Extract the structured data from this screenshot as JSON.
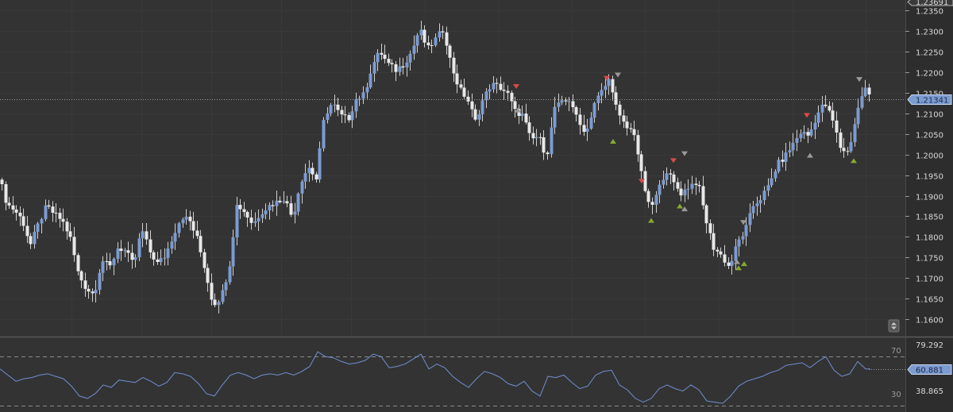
{
  "chart_data": [
    {
      "type": "candlestick",
      "title": "",
      "xlabel": "",
      "ylabel": "",
      "ylim": [
        1.156,
        1.2375
      ],
      "y_ticks": [
        "1.2350",
        "1.2300",
        "1.2250",
        "1.2200",
        "1.2150",
        "1.2100",
        "1.2050",
        "1.2000",
        "1.1950",
        "1.1900",
        "1.1850",
        "1.1800",
        "1.1750",
        "1.1700",
        "1.1650",
        "1.1600"
      ],
      "top_price_label": "1.23691",
      "current_price": 1.21341,
      "current_price_label": "1.21341",
      "grid": true,
      "bull_color": "#7b9bd1",
      "bear_color": "#e8e8e8",
      "wick_color": "#d0d0d0",
      "signal_up_color": "#86a832",
      "signal_down_color": "#d84b4b",
      "signal_neutral_color": "#9a9a9a",
      "close_path": [
        [
          0,
          1.1935
        ],
        [
          8,
          1.188
        ],
        [
          18,
          1.1865
        ],
        [
          28,
          1.184
        ],
        [
          38,
          1.178
        ],
        [
          48,
          1.183
        ],
        [
          58,
          1.1875
        ],
        [
          68,
          1.1855
        ],
        [
          78,
          1.184
        ],
        [
          88,
          1.18
        ],
        [
          98,
          1.171
        ],
        [
          108,
          1.1675
        ],
        [
          118,
          1.166
        ],
        [
          128,
          1.1745
        ],
        [
          138,
          1.1725
        ],
        [
          148,
          1.1775
        ],
        [
          158,
          1.1765
        ],
        [
          168,
          1.173
        ],
        [
          178,
          1.182
        ],
        [
          188,
          1.1765
        ],
        [
          198,
          1.1735
        ],
        [
          208,
          1.1755
        ],
        [
          218,
          1.1805
        ],
        [
          228,
          1.185
        ],
        [
          238,
          1.184
        ],
        [
          248,
          1.1795
        ],
        [
          258,
          1.172
        ],
        [
          268,
          1.1635
        ],
        [
          278,
          1.1655
        ],
        [
          288,
          1.1725
        ],
        [
          298,
          1.188
        ],
        [
          308,
          1.186
        ],
        [
          318,
          1.183
        ],
        [
          328,
          1.186
        ],
        [
          338,
          1.1875
        ],
        [
          348,
          1.1885
        ],
        [
          358,
          1.1895
        ],
        [
          368,
          1.1845
        ],
        [
          378,
          1.1935
        ],
        [
          388,
          1.197
        ],
        [
          398,
          1.194
        ],
        [
          408,
          1.2095
        ],
        [
          418,
          1.2125
        ],
        [
          428,
          1.2095
        ],
        [
          438,
          1.2085
        ],
        [
          448,
          1.2135
        ],
        [
          458,
          1.2145
        ],
        [
          468,
          1.2215
        ],
        [
          478,
          1.225
        ],
        [
          488,
          1.222
        ],
        [
          498,
          1.2205
        ],
        [
          508,
          1.222
        ],
        [
          518,
          1.225
        ],
        [
          528,
          1.2305
        ],
        [
          538,
          1.2255
        ],
        [
          548,
          1.228
        ],
        [
          558,
          1.2305
        ],
        [
          568,
          1.2215
        ],
        [
          578,
          1.216
        ],
        [
          588,
          1.2135
        ],
        [
          598,
          1.208
        ],
        [
          608,
          1.2135
        ],
        [
          618,
          1.217
        ],
        [
          628,
          1.2165
        ],
        [
          638,
          1.215
        ],
        [
          648,
          1.2105
        ],
        [
          658,
          1.2095
        ],
        [
          668,
          1.2035
        ],
        [
          678,
          1.2045
        ],
        [
          688,
          1.1995
        ],
        [
          698,
          1.2115
        ],
        [
          708,
          1.2125
        ],
        [
          718,
          1.2135
        ],
        [
          728,
          1.2075
        ],
        [
          738,
          1.2055
        ],
        [
          748,
          1.2125
        ],
        [
          758,
          1.2155
        ],
        [
          768,
          1.2185
        ],
        [
          778,
          1.2095
        ],
        [
          788,
          1.2065
        ],
        [
          798,
          1.2055
        ],
        [
          808,
          1.1945
        ],
        [
          818,
          1.1865
        ],
        [
          828,
          1.191
        ],
        [
          838,
          1.1965
        ],
        [
          848,
          1.193
        ],
        [
          858,
          1.1905
        ],
        [
          868,
          1.1925
        ],
        [
          878,
          1.1935
        ],
        [
          888,
          1.1845
        ],
        [
          898,
          1.1775
        ],
        [
          908,
          1.1755
        ],
        [
          918,
          1.1725
        ],
        [
          928,
          1.1785
        ],
        [
          938,
          1.1815
        ],
        [
          948,
          1.1875
        ],
        [
          958,
          1.1895
        ],
        [
          968,
          1.1925
        ],
        [
          978,
          1.1975
        ],
        [
          988,
          1.1995
        ],
        [
          998,
          1.2025
        ],
        [
          1008,
          1.2055
        ],
        [
          1018,
          1.2045
        ],
        [
          1028,
          1.2095
        ],
        [
          1038,
          1.2125
        ],
        [
          1048,
          1.2085
        ],
        [
          1058,
          1.2015
        ],
        [
          1068,
          1.2005
        ],
        [
          1078,
          1.2095
        ],
        [
          1088,
          1.2165
        ],
        [
          1096,
          1.2135
        ]
      ],
      "signals_up": [
        [
          772,
          1.2032
        ],
        [
          820,
          1.184
        ],
        [
          856,
          1.1875
        ],
        [
          930,
          1.1725
        ],
        [
          937,
          1.1735
        ],
        [
          1075,
          1.1985
        ]
      ],
      "signals_down": [
        [
          650,
          1.2165
        ],
        [
          764,
          1.2185
        ],
        [
          848,
          1.1985
        ],
        [
          1016,
          1.2095
        ],
        [
          808,
          1.1935
        ]
      ],
      "signals_neutral_up": [
        [
          652,
          1.2108
        ],
        [
          862,
          1.1868
        ],
        [
          928,
          1.174
        ],
        [
          1020,
          1.1998
        ]
      ],
      "signals_neutral_down": [
        [
          778,
          1.2193
        ],
        [
          862,
          1.2002
        ],
        [
          936,
          1.1835
        ],
        [
          1082,
          1.2182
        ]
      ]
    },
    {
      "type": "line",
      "title": "",
      "xlabel": "",
      "ylabel": "",
      "ylim": [
        25,
        85
      ],
      "top_value_label": "79.292",
      "bottom_value_label": "38.865",
      "current_value_label": "60.881",
      "levels": [
        70,
        30
      ],
      "level_labels": [
        "70",
        "30"
      ],
      "line_color": "#6f8fd0",
      "series": [
        {
          "values": [
            [
              0,
              60
            ],
            [
              10,
              55
            ],
            [
              20,
              50
            ],
            [
              30,
              52
            ],
            [
              40,
              53
            ],
            [
              50,
              55
            ],
            [
              60,
              56
            ],
            [
              70,
              54
            ],
            [
              80,
              52
            ],
            [
              90,
              46
            ],
            [
              100,
              38
            ],
            [
              110,
              36
            ],
            [
              120,
              40
            ],
            [
              130,
              47
            ],
            [
              140,
              45
            ],
            [
              150,
              51
            ],
            [
              160,
              50
            ],
            [
              170,
              49
            ],
            [
              180,
              53
            ],
            [
              190,
              50
            ],
            [
              200,
              46
            ],
            [
              210,
              49
            ],
            [
              220,
              57
            ],
            [
              230,
              56
            ],
            [
              240,
              54
            ],
            [
              250,
              48
            ],
            [
              260,
              40
            ],
            [
              270,
              38
            ],
            [
              280,
              47
            ],
            [
              290,
              55
            ],
            [
              300,
              57
            ],
            [
              310,
              55
            ],
            [
              320,
              52
            ],
            [
              330,
              55
            ],
            [
              340,
              56
            ],
            [
              350,
              55
            ],
            [
              360,
              57
            ],
            [
              370,
              55
            ],
            [
              380,
              58
            ],
            [
              390,
              62
            ],
            [
              400,
              74
            ],
            [
              410,
              70
            ],
            [
              420,
              69
            ],
            [
              430,
              66
            ],
            [
              440,
              64
            ],
            [
              450,
              65
            ],
            [
              460,
              67
            ],
            [
              470,
              72
            ],
            [
              480,
              70
            ],
            [
              490,
              61
            ],
            [
              500,
              62
            ],
            [
              510,
              64
            ],
            [
              520,
              68
            ],
            [
              530,
              72
            ],
            [
              540,
              60
            ],
            [
              550,
              64
            ],
            [
              560,
              61
            ],
            [
              570,
              54
            ],
            [
              580,
              49
            ],
            [
              590,
              45
            ],
            [
              600,
              52
            ],
            [
              610,
              58
            ],
            [
              620,
              56
            ],
            [
              630,
              53
            ],
            [
              640,
              48
            ],
            [
              650,
              46
            ],
            [
              660,
              50
            ],
            [
              670,
              42
            ],
            [
              680,
              38
            ],
            [
              690,
              54
            ],
            [
              700,
              53
            ],
            [
              710,
              55
            ],
            [
              720,
              49
            ],
            [
              730,
              44
            ],
            [
              740,
              46
            ],
            [
              750,
              55
            ],
            [
              760,
              58
            ],
            [
              770,
              59
            ],
            [
              780,
              47
            ],
            [
              790,
              43
            ],
            [
              800,
              36
            ],
            [
              810,
              33
            ],
            [
              820,
              36
            ],
            [
              830,
              44
            ],
            [
              840,
              47
            ],
            [
              850,
              44
            ],
            [
              860,
              42
            ],
            [
              870,
              47
            ],
            [
              880,
              43
            ],
            [
              890,
              34
            ],
            [
              900,
              33
            ],
            [
              910,
              32
            ],
            [
              920,
              38
            ],
            [
              930,
              46
            ],
            [
              940,
              50
            ],
            [
              950,
              52
            ],
            [
              960,
              54
            ],
            [
              970,
              57
            ],
            [
              980,
              59
            ],
            [
              990,
              63
            ],
            [
              1000,
              64
            ],
            [
              1010,
              65
            ],
            [
              1020,
              61
            ],
            [
              1030,
              66
            ],
            [
              1040,
              70
            ],
            [
              1050,
              59
            ],
            [
              1060,
              54
            ],
            [
              1070,
              56
            ],
            [
              1080,
              66
            ],
            [
              1090,
              60
            ],
            [
              1096,
              60
            ]
          ]
        }
      ]
    }
  ]
}
